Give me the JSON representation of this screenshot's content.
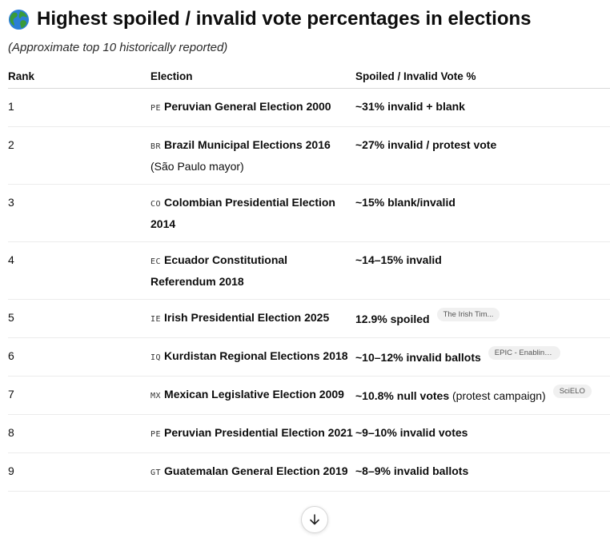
{
  "heading": {
    "title": "Highest spoiled / invalid vote percentages in elections",
    "subtitle": "(Approximate top 10 historically reported)"
  },
  "table": {
    "headers": [
      "Rank",
      "Election",
      "Spoiled / Invalid Vote %"
    ],
    "rows": [
      {
        "rank": "1",
        "cc": "PE",
        "election": "Peruvian General Election 2000",
        "election_sub": "",
        "pct": "~31% invalid + blank",
        "pct_extra": "",
        "source": ""
      },
      {
        "rank": "2",
        "cc": "BR",
        "election": "Brazil Municipal Elections 2016",
        "election_sub": "(São Paulo mayor)",
        "pct": "~27% invalid / protest vote",
        "pct_extra": "",
        "source": ""
      },
      {
        "rank": "3",
        "cc": "CO",
        "election": "Colombian Presidential Election 2014",
        "election_sub": "",
        "pct": "~15% blank/invalid",
        "pct_extra": "",
        "source": ""
      },
      {
        "rank": "4",
        "cc": "EC",
        "election": "Ecuador Constitutional Referendum 2018",
        "election_sub": "",
        "pct": "~14–15% invalid",
        "pct_extra": "",
        "source": ""
      },
      {
        "rank": "5",
        "cc": "IE",
        "election": "Irish Presidential Election 2025",
        "election_sub": "",
        "pct": "12.9% spoiled",
        "pct_extra": "",
        "source": "The Irish Tim..."
      },
      {
        "rank": "6",
        "cc": "IQ",
        "election": "Kurdistan Regional Elections 2018",
        "election_sub": "",
        "pct": "~10–12% invalid ballots",
        "pct_extra": "",
        "source": "EPIC - Enabling ..."
      },
      {
        "rank": "7",
        "cc": "MX",
        "election": "Mexican Legislative Election 2009",
        "election_sub": "",
        "pct": "~10.8% null votes",
        "pct_extra": " (protest campaign)",
        "source": "SciELO"
      },
      {
        "rank": "8",
        "cc": "PE",
        "election": "Peruvian Presidential Election 2021",
        "election_sub": "",
        "pct": "~9–10% invalid votes",
        "pct_extra": "",
        "source": ""
      },
      {
        "rank": "9",
        "cc": "GT",
        "election": "Guatemalan General Election 2019",
        "election_sub": "",
        "pct": "~8–9% invalid ballots",
        "pct_extra": "",
        "source": ""
      }
    ]
  },
  "icons": {
    "title": "globe-icon",
    "scroll": "arrow-down-icon"
  },
  "colors": {
    "text": "#0d0d0d",
    "pill_bg": "#f0f0f0",
    "globe_water": "#2b7fd6",
    "globe_land": "#3a9b3a"
  }
}
